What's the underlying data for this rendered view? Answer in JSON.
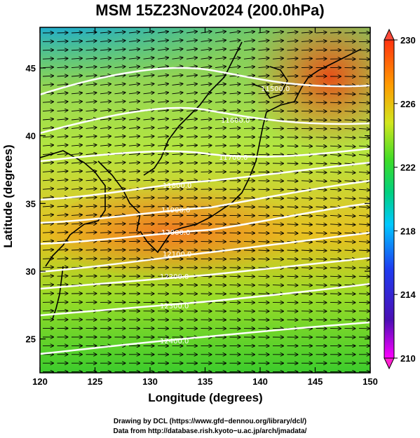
{
  "title": "MSM 15Z23Nov2024 (200.0hPa)",
  "x_axis": {
    "label": "Longitude (degrees)",
    "min": 120,
    "max": 150,
    "ticks": [
      "120",
      "125",
      "130",
      "135",
      "140",
      "145",
      "150"
    ]
  },
  "y_axis": {
    "label": "Latitude  (degrees)",
    "min": 22.5,
    "max": 48,
    "ticks": [
      "25",
      "30",
      "35",
      "40",
      "45"
    ]
  },
  "colorbar": {
    "min": 210,
    "max": 230,
    "ticks": [
      "210",
      "214",
      "218",
      "222",
      "226",
      "230"
    ]
  },
  "contour_labels": [
    "11500.0",
    "11600.0",
    "11700.0",
    "11800.0",
    "11900.0",
    "12000.0",
    "12100.0",
    "12200.0",
    "12300.0",
    "12400.0"
  ],
  "credits": {
    "line1": "Drawing by DCL (https://www.gfd−dennou.org/library/dcl/)",
    "line2": "Data from http://database.rish.kyoto−u.ac.jp/arch/jmadata/"
  },
  "colors": {
    "cold": "#1a4fd8",
    "mid": "#3fd42a",
    "warm": "#f0a000",
    "hot": "#f03010",
    "contour": "#ffffff"
  }
}
